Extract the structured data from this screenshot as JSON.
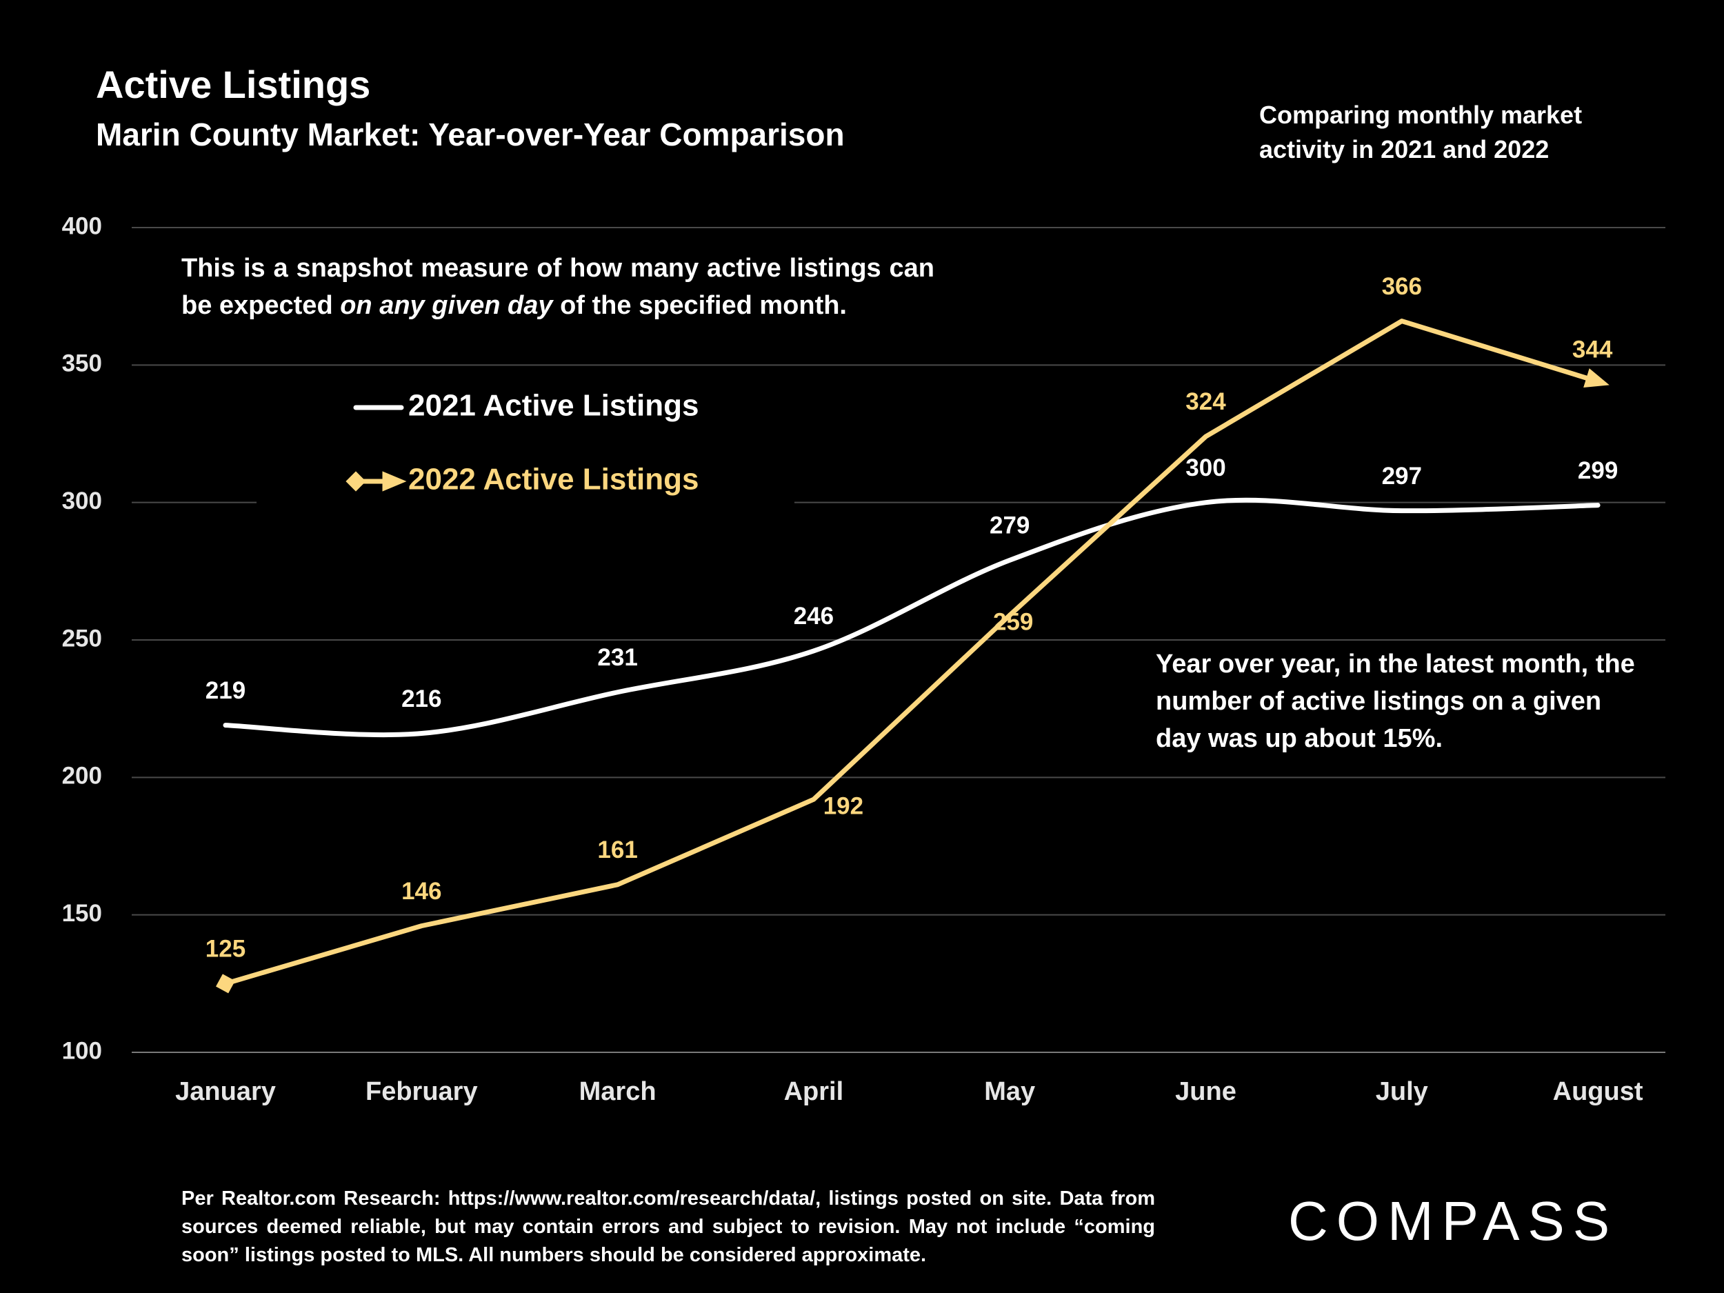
{
  "chart_data": {
    "type": "line",
    "title": "Active Listings",
    "subtitle": "Marin County Market: Year-over-Year Comparison",
    "note": "Comparing monthly market activity in 2021 and 2022",
    "categories": [
      "January",
      "February",
      "March",
      "April",
      "May",
      "June",
      "July",
      "August"
    ],
    "series": [
      {
        "name": "2021 Active Listings",
        "color": "#ffffff",
        "values": [
          219,
          216,
          231,
          246,
          279,
          300,
          297,
          299
        ]
      },
      {
        "name": "2022 Active Listings",
        "color": "#fcd77f",
        "values": [
          125,
          146,
          161,
          192,
          259,
          324,
          366,
          344
        ]
      }
    ],
    "ylim": [
      100,
      400
    ],
    "yticks": [
      100,
      150,
      200,
      250,
      300,
      350,
      400
    ],
    "grid": true,
    "annotations": [
      [
        "This is a snapshot measure of how many active listings can be expected ",
        "on any given day",
        " of the specified month."
      ],
      [
        "Year over year, in the latest month, the number of active listings on a given day was up about 15%."
      ]
    ],
    "source": "Per Realtor.com Research:   https://www.realtor.com/research/data/, listings posted on site. Data from sources deemed reliable, but may contain errors and subject to revision. May not include “coming soon” listings posted to MLS. All numbers should be considered approximate.",
    "logo": "COMPASS"
  }
}
